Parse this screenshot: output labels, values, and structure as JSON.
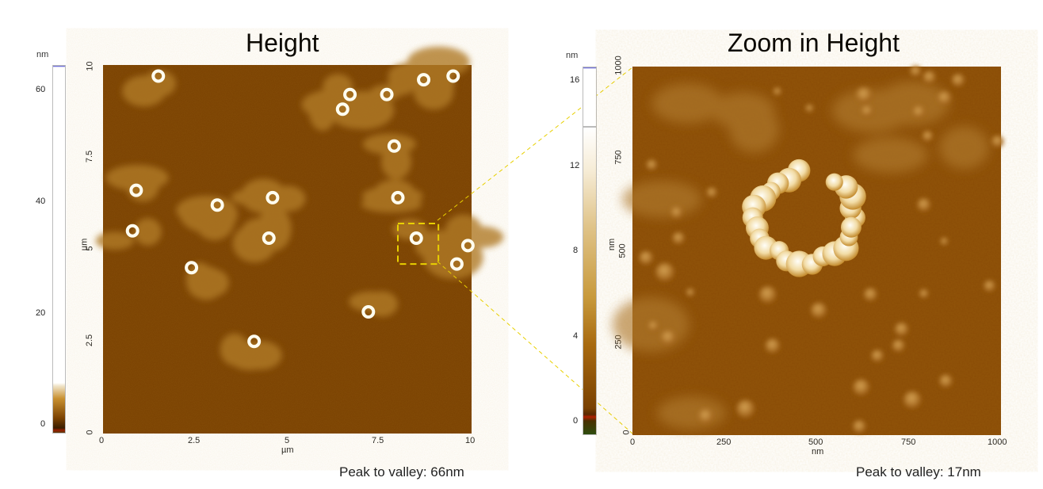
{
  "chart_data": [
    {
      "type": "heatmap",
      "title": "Height",
      "xlabel": "µm",
      "ylabel": "µm",
      "x_ticks": [
        "0",
        "2.5",
        "5",
        "7.5",
        "10"
      ],
      "y_ticks": [
        "0",
        "2.5",
        "5",
        "7.5",
        "10"
      ],
      "xlim": [
        0,
        10
      ],
      "ylim": [
        0,
        10
      ],
      "colorbar": {
        "unit": "nm",
        "ticks": [
          "0",
          "20",
          "40",
          "60"
        ],
        "range": [
          -2,
          64
        ]
      },
      "annotation": "Peak to valley: 66nm",
      "ring_features_um": [
        {
          "x": 1.5,
          "y": 9.7
        },
        {
          "x": 6.7,
          "y": 9.2
        },
        {
          "x": 6.5,
          "y": 8.8
        },
        {
          "x": 7.7,
          "y": 9.2
        },
        {
          "x": 8.7,
          "y": 9.6
        },
        {
          "x": 9.5,
          "y": 9.7
        },
        {
          "x": 7.9,
          "y": 7.8
        },
        {
          "x": 0.9,
          "y": 6.6
        },
        {
          "x": 3.1,
          "y": 6.2
        },
        {
          "x": 4.6,
          "y": 6.4
        },
        {
          "x": 8.0,
          "y": 6.4
        },
        {
          "x": 0.8,
          "y": 5.5
        },
        {
          "x": 4.5,
          "y": 5.3
        },
        {
          "x": 8.5,
          "y": 5.3
        },
        {
          "x": 9.6,
          "y": 4.6
        },
        {
          "x": 9.9,
          "y": 5.1
        },
        {
          "x": 2.4,
          "y": 4.5
        },
        {
          "x": 7.2,
          "y": 3.3
        },
        {
          "x": 4.1,
          "y": 2.5
        }
      ],
      "zoom_box_um": {
        "x0": 8.0,
        "y0": 4.6,
        "x1": 9.1,
        "y1": 5.7
      }
    },
    {
      "type": "heatmap",
      "title": "Zoom in Height",
      "xlabel": "nm",
      "ylabel": "nm",
      "x_ticks": [
        "0",
        "250",
        "500",
        "750",
        "1000"
      ],
      "y_ticks": [
        "0",
        "250",
        "500",
        "750",
        "1000"
      ],
      "xlim": [
        0,
        1000
      ],
      "ylim": [
        0,
        1000
      ],
      "colorbar": {
        "unit": "nm",
        "ticks": [
          "0",
          "4",
          "8",
          "12",
          "16"
        ],
        "range": [
          -0.4,
          16.6
        ]
      },
      "annotation": "Peak to valley: 17nm",
      "ring_center_nm": {
        "x": 470,
        "y": 590
      },
      "ring_radius_nm": 130
    }
  ],
  "colors": {
    "background": "#7a4101",
    "low": "#5a2e00",
    "high": "#fffef8",
    "zoom_guide": "#e8d000",
    "colorbar_top": "#4444cc"
  }
}
